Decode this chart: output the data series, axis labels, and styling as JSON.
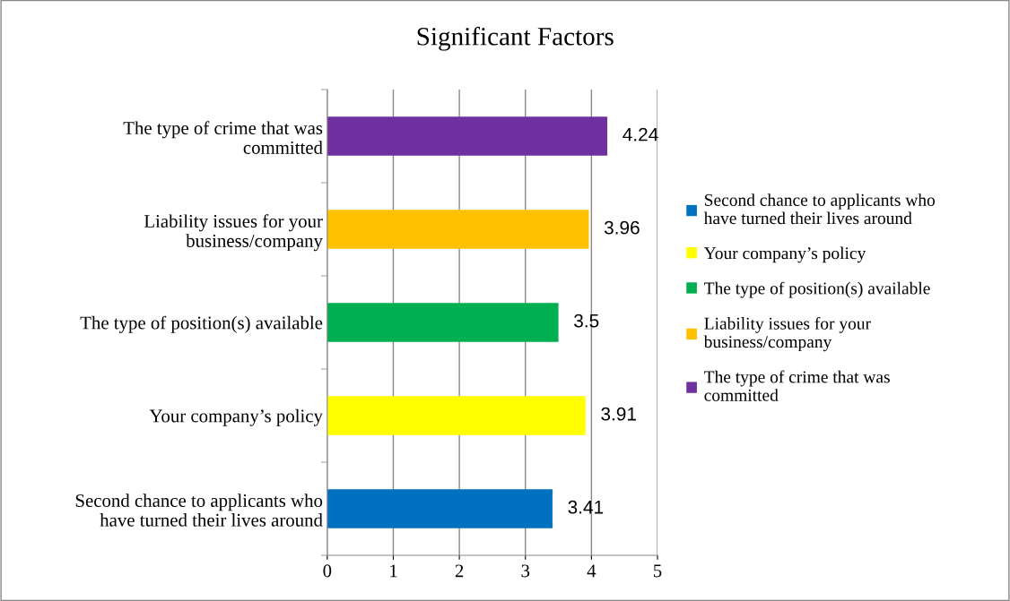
{
  "chart_data": {
    "type": "bar",
    "orientation": "horizontal",
    "title": "Significant Factors",
    "categories": [
      "The type of crime that was\ncommitted",
      "Liability issues for your\nbusiness/company",
      "The type of position(s) available",
      "Your company’s policy",
      "Second chance to applicants who\nhave turned their lives around"
    ],
    "series": [
      {
        "name": "Second chance to applicants who\nhave turned their lives around",
        "color": "#0070c0",
        "values": [
          null,
          null,
          null,
          null,
          3.41
        ]
      },
      {
        "name": "Your company’s policy",
        "color": "#ffff00",
        "values": [
          null,
          null,
          null,
          3.91,
          null
        ]
      },
      {
        "name": "The type of position(s) available",
        "color": "#00b050",
        "values": [
          null,
          null,
          3.5,
          null,
          null
        ]
      },
      {
        "name": "Liability issues for your\nbusiness/company",
        "color": "#ffc000",
        "values": [
          null,
          3.96,
          null,
          null,
          null
        ]
      },
      {
        "name": "The type of crime that was\ncommitted",
        "color": "#7030a0",
        "values": [
          4.24,
          null,
          null,
          null,
          null
        ]
      }
    ],
    "xlim": [
      0,
      5
    ],
    "xticks": [
      0,
      1,
      2,
      3,
      4,
      5
    ],
    "grid": "x",
    "legend": "right",
    "data_labels": true
  }
}
